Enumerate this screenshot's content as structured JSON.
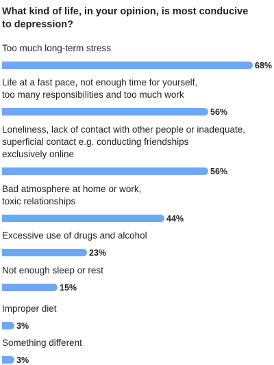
{
  "chart_data": {
    "type": "bar",
    "orientation": "horizontal",
    "title": "What kind of life, in your opinion, is most conducive\nto depression?",
    "bar_color": "#6ea8f5",
    "value_suffix": "%",
    "xlim": [
      0,
      68
    ],
    "categories": [
      "Too much long-term stress",
      "Life at a fast pace, not enough time for yourself,\ntoo many responsibilities and too much work",
      "Loneliness, lack of contact with other people or inadequate,\nsuperficial contact e.g. conducting friendships\nexclusively online",
      "Bad atmosphere at home or work,\ntoxic relationships",
      "Excessive use of drugs and alcohol",
      "Not enough sleep or rest",
      "Improper diet",
      "Something different"
    ],
    "values": [
      68,
      56,
      56,
      44,
      23,
      15,
      3,
      3
    ]
  }
}
